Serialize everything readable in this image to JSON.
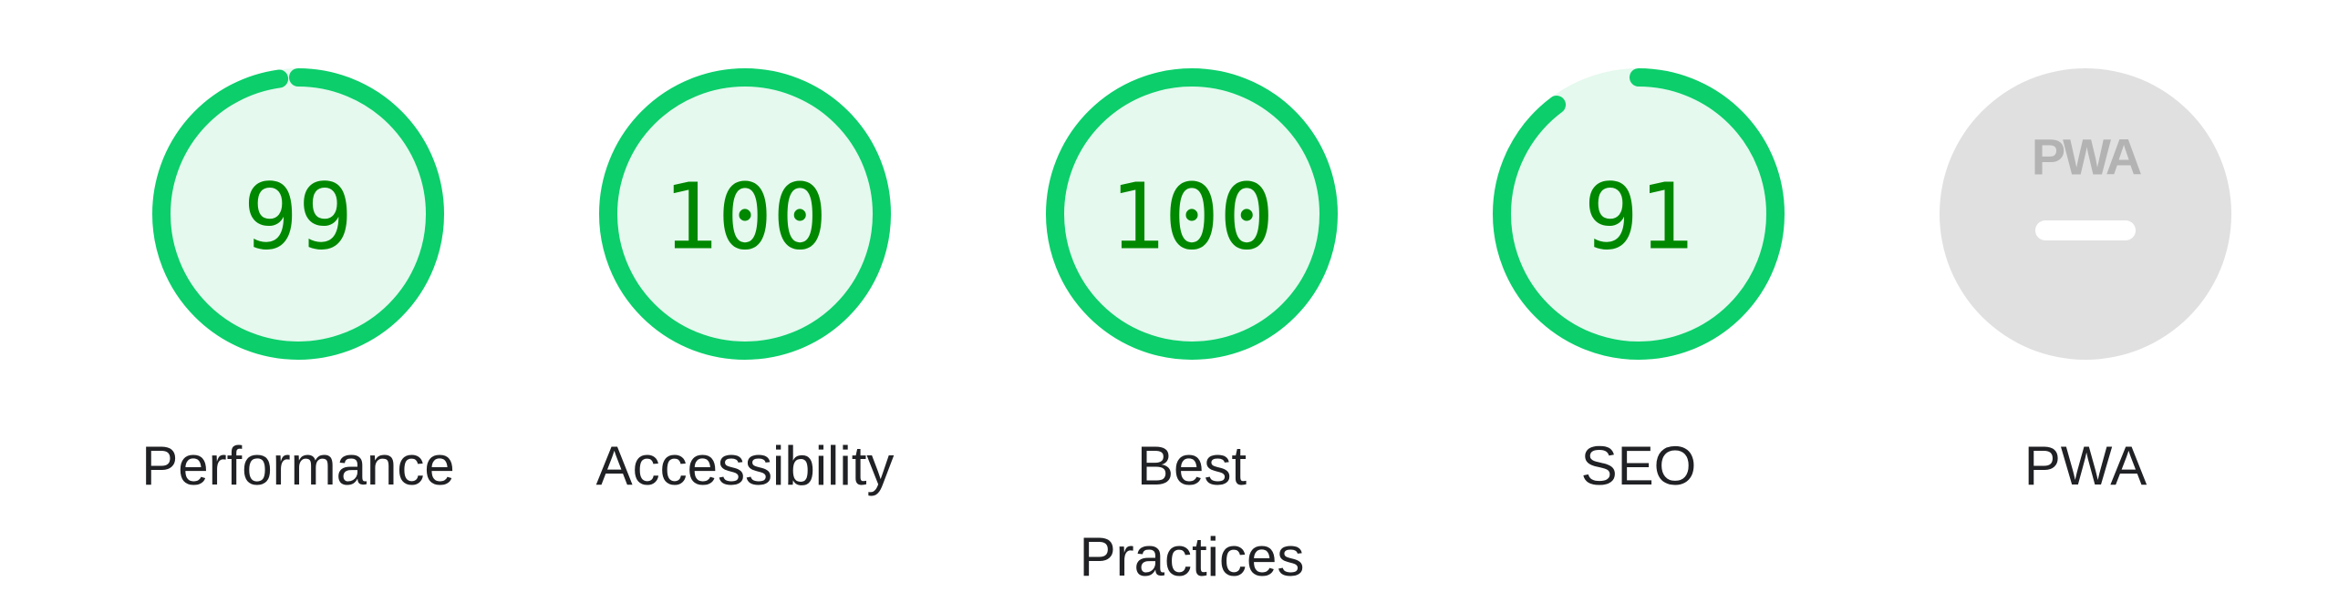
{
  "colors": {
    "pass": "#0cce6b",
    "pass_text": "#008800",
    "pass_fill": "#e5f9ee",
    "na_fill": "#e0e0e0",
    "na_mark": "#ffffff",
    "na_logo": "#b3b3b3",
    "label": "#202124"
  },
  "gauges": [
    {
      "id": "performance",
      "label": "Performance",
      "score": 99,
      "score_text": "99"
    },
    {
      "id": "accessibility",
      "label": "Accessibility",
      "score": 100,
      "score_text": "100"
    },
    {
      "id": "best-practices",
      "label": "Best Practices",
      "score": 100,
      "score_text": "100"
    },
    {
      "id": "seo",
      "label": "SEO",
      "score": 91,
      "score_text": "91"
    }
  ],
  "pwa": {
    "label": "PWA",
    "logo_text": "PWA",
    "icon": "pwa-logo-icon"
  }
}
